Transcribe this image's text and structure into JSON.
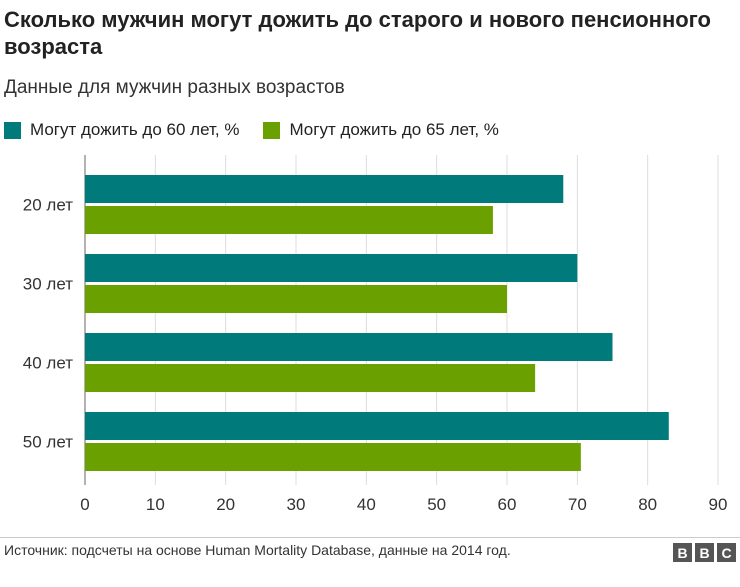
{
  "title": "Сколько мужчин могут дожить до старого и нового пенсионного возраста",
  "subtitle": "Данные для мужчин разных возрастов",
  "footer": {
    "source": "Источник: подсчеты на основе Human Mortality Database, данные на 2014 год.",
    "logo_text": "BBC"
  },
  "colors": {
    "series_60": "#007a7a",
    "series_65": "#6aa100",
    "grid": "#dddddd",
    "axis": "#666666"
  },
  "chart_data": {
    "type": "bar",
    "orientation": "horizontal",
    "categories": [
      "20 лет",
      "30 лет",
      "40 лет",
      "50 лет"
    ],
    "series": [
      {
        "name": "Могут дожить до 60 лет, %",
        "values": [
          68,
          70,
          75,
          83
        ]
      },
      {
        "name": "Могут дожить до 65 лет, %",
        "values": [
          58,
          60,
          64,
          70.5
        ]
      }
    ],
    "xlim": [
      0,
      90
    ],
    "xticks": [
      "0",
      "10",
      "20",
      "30",
      "40",
      "50",
      "60",
      "70",
      "80",
      "90"
    ],
    "grid": true,
    "legend": "top-left"
  }
}
